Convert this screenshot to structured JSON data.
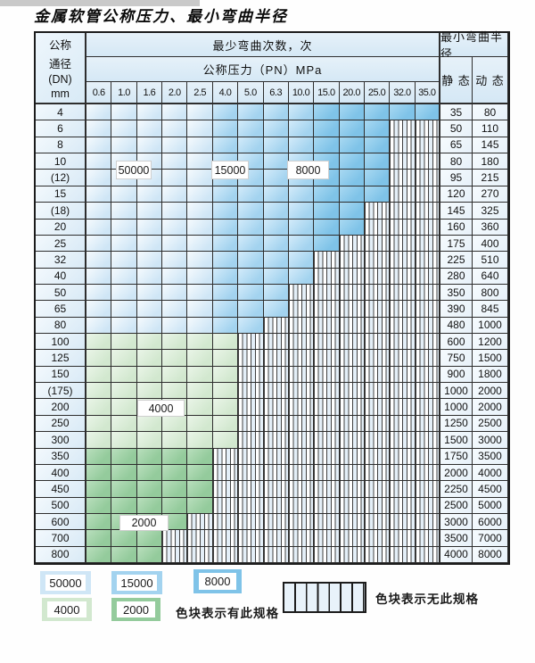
{
  "title": "金属软管公称压力、最小弯曲半径",
  "table": {
    "corner_header_lines": [
      "公称",
      "通径",
      "(DN)",
      "mm"
    ],
    "cycles_header": "最少弯曲次数，次",
    "pressure_header": "公称压力（PN）MPa",
    "radius_header": "最小弯曲半径",
    "static_header": "静 态",
    "dynamic_header": "动 态",
    "pressures": [
      "0.6",
      "1.0",
      "1.6",
      "2.0",
      "2.5",
      "4.0",
      "5.0",
      "6.3",
      "10.0",
      "15.0",
      "20.0",
      "25.0",
      "32.0",
      "35.0"
    ],
    "blue_zone_split": {
      "z50_cols": 5,
      "z15_cols": 4,
      "z80_cols": 5
    },
    "rows": [
      {
        "dn": "4",
        "zone": "blue",
        "colored_cols": 14,
        "static": "35",
        "dynamic": "80"
      },
      {
        "dn": "6",
        "zone": "blue",
        "colored_cols": 12,
        "static": "50",
        "dynamic": "110"
      },
      {
        "dn": "8",
        "zone": "blue",
        "colored_cols": 12,
        "static": "65",
        "dynamic": "145"
      },
      {
        "dn": "10",
        "zone": "blue",
        "colored_cols": 12,
        "static": "80",
        "dynamic": "180"
      },
      {
        "dn": "(12)",
        "zone": "blue",
        "colored_cols": 12,
        "static": "95",
        "dynamic": "215"
      },
      {
        "dn": "15",
        "zone": "blue",
        "colored_cols": 12,
        "static": "120",
        "dynamic": "270"
      },
      {
        "dn": "(18)",
        "zone": "blue",
        "colored_cols": 11,
        "static": "145",
        "dynamic": "325"
      },
      {
        "dn": "20",
        "zone": "blue",
        "colored_cols": 11,
        "static": "160",
        "dynamic": "360"
      },
      {
        "dn": "25",
        "zone": "blue",
        "colored_cols": 10,
        "static": "175",
        "dynamic": "400"
      },
      {
        "dn": "32",
        "zone": "blue",
        "colored_cols": 9,
        "static": "225",
        "dynamic": "510"
      },
      {
        "dn": "40",
        "zone": "blue",
        "colored_cols": 9,
        "static": "280",
        "dynamic": "640"
      },
      {
        "dn": "50",
        "zone": "blue",
        "colored_cols": 8,
        "static": "350",
        "dynamic": "800"
      },
      {
        "dn": "65",
        "zone": "blue",
        "colored_cols": 8,
        "static": "390",
        "dynamic": "845"
      },
      {
        "dn": "80",
        "zone": "blue",
        "colored_cols": 7,
        "static": "480",
        "dynamic": "1000"
      },
      {
        "dn": "100",
        "zone": "g4000",
        "colored_cols": 6,
        "static": "600",
        "dynamic": "1200"
      },
      {
        "dn": "125",
        "zone": "g4000",
        "colored_cols": 6,
        "static": "750",
        "dynamic": "1500"
      },
      {
        "dn": "150",
        "zone": "g4000",
        "colored_cols": 6,
        "static": "900",
        "dynamic": "1800"
      },
      {
        "dn": "(175)",
        "zone": "g4000",
        "colored_cols": 6,
        "static": "1000",
        "dynamic": "2000"
      },
      {
        "dn": "200",
        "zone": "g4000",
        "colored_cols": 6,
        "static": "1000",
        "dynamic": "2000"
      },
      {
        "dn": "250",
        "zone": "g4000",
        "colored_cols": 6,
        "static": "1250",
        "dynamic": "2500"
      },
      {
        "dn": "300",
        "zone": "g4000",
        "colored_cols": 6,
        "static": "1500",
        "dynamic": "3000"
      },
      {
        "dn": "350",
        "zone": "g2000",
        "colored_cols": 5,
        "static": "1750",
        "dynamic": "3500"
      },
      {
        "dn": "400",
        "zone": "g2000",
        "colored_cols": 5,
        "static": "2000",
        "dynamic": "4000"
      },
      {
        "dn": "450",
        "zone": "g2000",
        "colored_cols": 5,
        "static": "2250",
        "dynamic": "4500"
      },
      {
        "dn": "500",
        "zone": "g2000",
        "colored_cols": 5,
        "static": "2500",
        "dynamic": "5000"
      },
      {
        "dn": "600",
        "zone": "g2000",
        "colored_cols": 4,
        "static": "3000",
        "dynamic": "6000"
      },
      {
        "dn": "700",
        "zone": "g2000",
        "colored_cols": 3,
        "static": "3500",
        "dynamic": "7000"
      },
      {
        "dn": "800",
        "zone": "g2000",
        "colored_cols": 3,
        "static": "4000",
        "dynamic": "8000"
      }
    ],
    "zone_labels": [
      {
        "id": "cycles-50000",
        "text": "50000"
      },
      {
        "id": "cycles-15000",
        "text": "15000"
      },
      {
        "id": "cycles-8000",
        "text": "8000"
      },
      {
        "id": "cycles-4000",
        "text": "4000"
      },
      {
        "id": "cycles-2000",
        "text": "2000"
      }
    ]
  },
  "legend": {
    "swatches": [
      {
        "label": "50000",
        "color": "#cfe6f6"
      },
      {
        "label": "15000",
        "color": "#a3d3ef"
      },
      {
        "label": "8000",
        "color": "#7fc3e8"
      },
      {
        "label": "4000",
        "color": "#d2e8cf"
      },
      {
        "label": "2000",
        "color": "#94cb9c"
      }
    ],
    "has_spec_note": "色块表示有此规格",
    "no_spec_note": "色块表示无此规格"
  },
  "colors": {
    "zone_50000": "#cfe6f6",
    "zone_15000": "#a3d3ef",
    "zone_8000": "#7fc3e8",
    "zone_4000": "#d2e8cf",
    "zone_2000": "#94cb9c",
    "grid_line": "#2e2e2e",
    "header_bg": "#d5e8f5"
  }
}
